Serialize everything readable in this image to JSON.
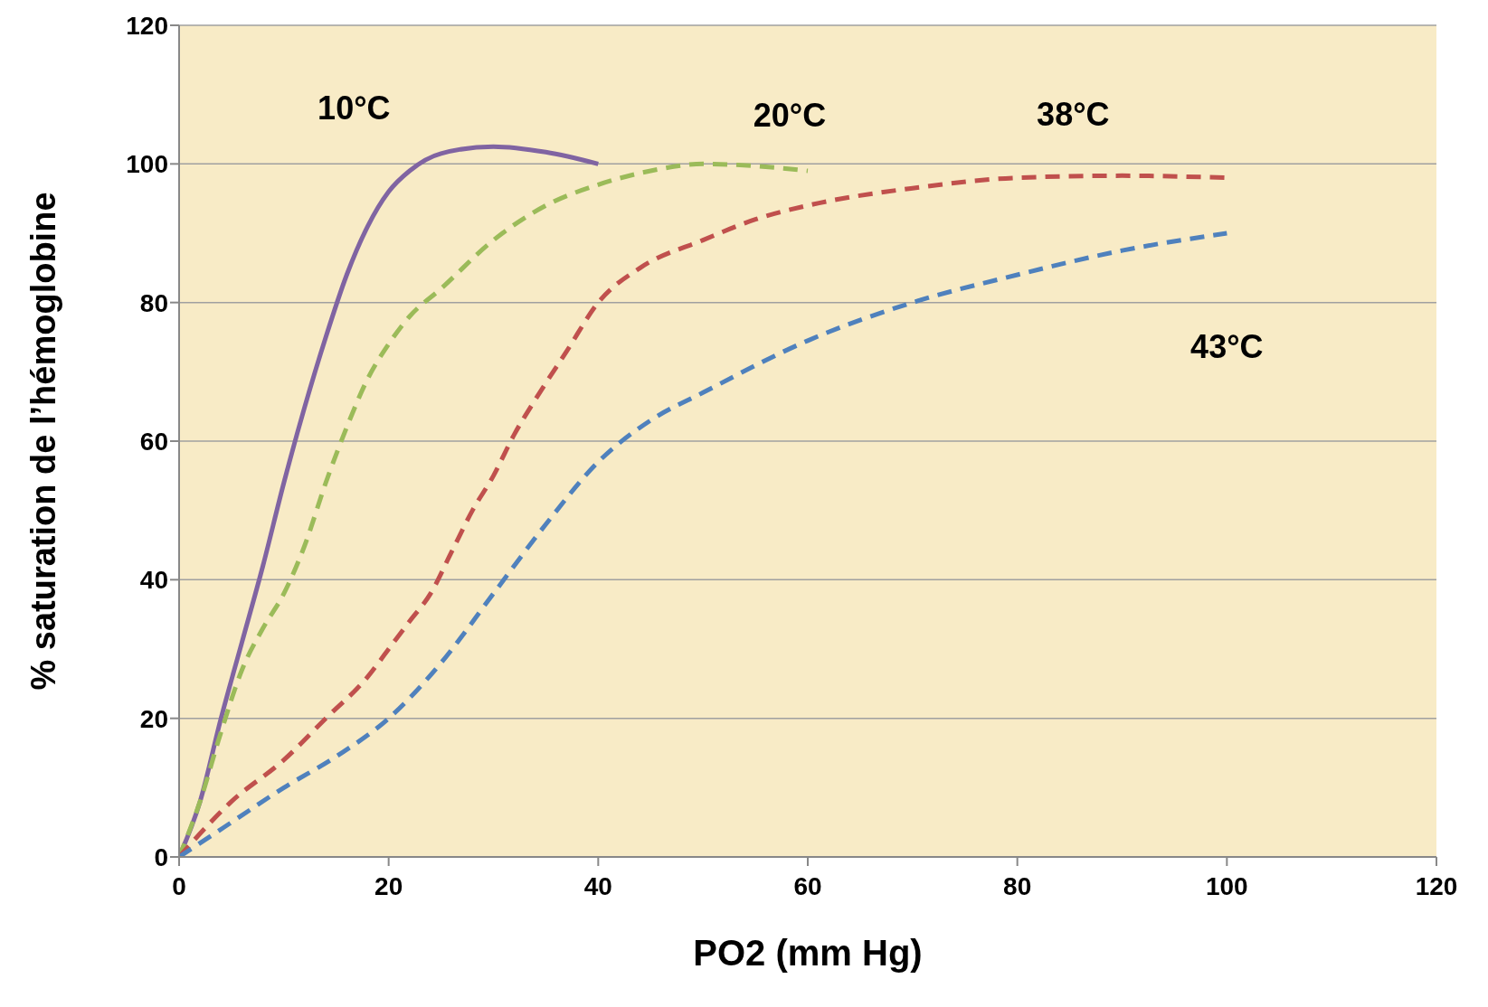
{
  "chart_data": {
    "type": "line",
    "xlabel": "PO2 (mm Hg)",
    "ylabel": "% saturation de l’hémoglobine",
    "xlim": [
      0,
      120
    ],
    "xticks": [
      0,
      20,
      40,
      60,
      80,
      100,
      120
    ],
    "ylim": [
      0,
      120
    ],
    "yticks": [
      0,
      20,
      40,
      60,
      80,
      100,
      120
    ],
    "grid": "y",
    "marker": "none",
    "series": [
      {
        "name": "10°C",
        "color": "#8064a2",
        "line_style": "solid",
        "x": [
          0,
          2,
          4,
          6,
          8,
          10,
          12,
          14,
          16,
          18,
          20,
          22,
          25,
          30,
          35,
          40
        ],
        "values": [
          0,
          8,
          20,
          31,
          42,
          54,
          65,
          75,
          84,
          91,
          96,
          99,
          101.5,
          102.5,
          101.7,
          100
        ]
      },
      {
        "name": "20°C",
        "color": "#9bbb59",
        "line_style": "dashed",
        "x": [
          0,
          2,
          4,
          6,
          8,
          10,
          12,
          14,
          16,
          18,
          20,
          22,
          25,
          30,
          35,
          40,
          45,
          50,
          55,
          60
        ],
        "values": [
          0,
          8,
          18,
          27,
          33,
          38,
          45,
          54,
          62,
          69,
          74,
          78,
          82,
          89,
          94,
          97,
          99,
          100,
          99.7,
          99
        ]
      },
      {
        "name": "38°C",
        "color": "#c0504d",
        "line_style": "dashed",
        "x": [
          0,
          5,
          10,
          14,
          18,
          20,
          22,
          24,
          26,
          28,
          30,
          32,
          34,
          37,
          40,
          44,
          50,
          55,
          60,
          70,
          80,
          90,
          100
        ],
        "values": [
          0,
          8,
          14,
          20,
          26,
          30,
          34,
          38,
          44,
          50,
          55,
          61,
          66,
          73,
          80,
          85,
          89,
          92,
          94,
          96.5,
          98,
          98.3,
          98
        ]
      },
      {
        "name": "43°C",
        "color": "#4f81bd",
        "line_style": "dashed",
        "x": [
          0,
          5,
          10,
          15,
          20,
          25,
          30,
          35,
          40,
          45,
          50,
          60,
          70,
          80,
          90,
          100
        ],
        "values": [
          0,
          5,
          10,
          14.5,
          20,
          28,
          38,
          48,
          57,
          63,
          67,
          74.5,
          80,
          84,
          87.5,
          90
        ]
      }
    ]
  }
}
